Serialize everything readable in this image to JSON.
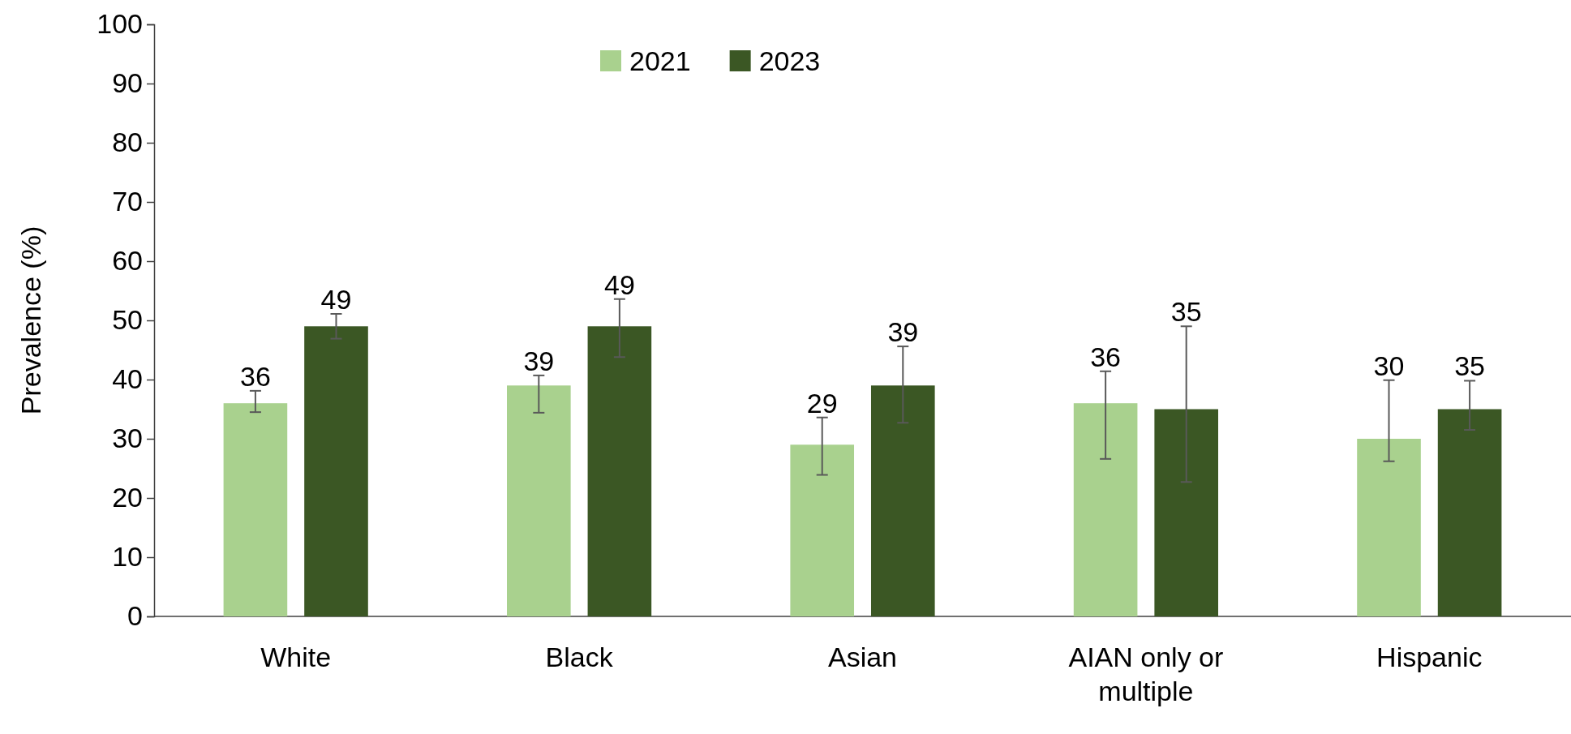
{
  "chart_data": {
    "type": "bar",
    "ylabel": "Prevalence (%)",
    "categories": [
      "White",
      "Black",
      "Asian",
      "AIAN only or multiple",
      "Hispanic"
    ],
    "series": [
      {
        "name": "2021",
        "color": "#a9d18e",
        "values": [
          36,
          39,
          29,
          36,
          30
        ],
        "errors": [
          [
            34.5,
            38.1
          ],
          [
            34.4,
            40.7
          ],
          [
            23.9,
            33.6
          ],
          [
            26.6,
            41.4
          ],
          [
            26.2,
            39.9
          ]
        ]
      },
      {
        "name": "2023",
        "color": "#3b5724",
        "values": [
          49,
          49,
          39,
          35,
          35
        ],
        "errors": [
          [
            46.9,
            51.1
          ],
          [
            43.8,
            53.6
          ],
          [
            32.7,
            45.6
          ],
          [
            22.7,
            49.0
          ],
          [
            31.5,
            39.8
          ]
        ]
      }
    ],
    "ylim": [
      0,
      100
    ],
    "yticks": [
      0,
      10,
      20,
      30,
      40,
      50,
      60,
      70,
      80,
      90,
      100
    ],
    "data_labels": true,
    "legend": "top",
    "grid": false
  }
}
